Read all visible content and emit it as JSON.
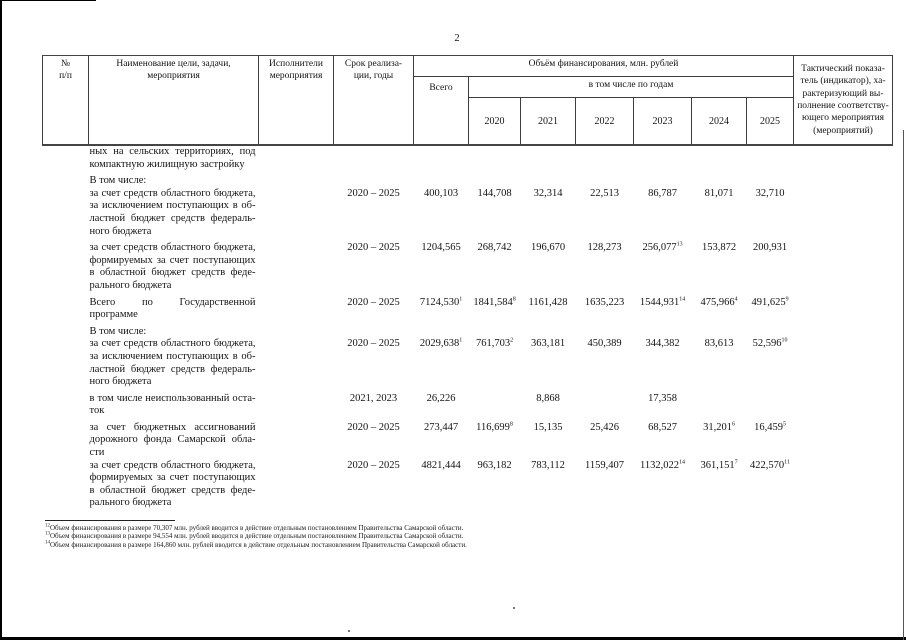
{
  "page": {
    "number": "2"
  },
  "table": {
    "header": {
      "col_num": "№\nп/п",
      "col_name": "Наименование цели, задачи,\nмероприятия",
      "col_executors": "Исполнители\nмероприятия",
      "col_period": "Срок реализа-\nции, годы",
      "financing": "Объём финансирования, млн. рублей",
      "total": "Всего",
      "by_years": "в том числе по годам",
      "years": [
        "2020",
        "2021",
        "2022",
        "2023",
        "2024",
        "2025"
      ],
      "indicator": "Тактический показа-\nтель (индикатор), ха-\nрактеризующий вы-\nполнение соответству-\nющего мероприятия\n(мероприятий)"
    },
    "rows": [
      {
        "name": "ных на сельских территориях, под компактную жилищную застройку",
        "period": "",
        "tight": true,
        "values": [
          null,
          null,
          null,
          null,
          null,
          null,
          null
        ]
      },
      {
        "name": "В том числе:",
        "period": "",
        "tight": false,
        "values": [
          null,
          null,
          null,
          null,
          null,
          null,
          null
        ]
      },
      {
        "name": "за счет средств областного бюджета, за исключением поступающих в об­ластной бюджет средств федераль­ного бюджета",
        "period": "2020 – 2025",
        "tight": true,
        "values": [
          {
            "v": "400,103"
          },
          {
            "v": "144,708"
          },
          {
            "v": "32,314"
          },
          {
            "v": "22,513"
          },
          {
            "v": "86,787"
          },
          {
            "v": "81,071"
          },
          {
            "v": "32,710"
          }
        ]
      },
      {
        "name": "за счет средств областного бюджета, формируемых за счет поступающих в областной бюджет средств феде­рального бюджета",
        "period": "2020 – 2025",
        "tight": false,
        "values": [
          {
            "v": "1204,565"
          },
          {
            "v": "268,742"
          },
          {
            "v": "196,670"
          },
          {
            "v": "128,273"
          },
          {
            "v": "256,077",
            "s": "13"
          },
          {
            "v": "153,872"
          },
          {
            "v": "200,931"
          }
        ]
      },
      {
        "name": "Всего по Государственной программе",
        "period": "2020 – 2025",
        "tight": false,
        "values": [
          {
            "v": "7124,530",
            "s": "1"
          },
          {
            "v": "1841,584",
            "s": "8"
          },
          {
            "v": "1161,428"
          },
          {
            "v": "1635,223"
          },
          {
            "v": "1544,931",
            "s": "14"
          },
          {
            "v": "475,966",
            "s": "4"
          },
          {
            "v": "491,625",
            "s": "9"
          }
        ]
      },
      {
        "name": "В том числе:",
        "period": "",
        "tight": false,
        "values": [
          null,
          null,
          null,
          null,
          null,
          null,
          null
        ]
      },
      {
        "name": "за счет средств областного бюджета, за исключением поступающих в об­ластной бюджет средств федераль­ного бюджета",
        "period": "2020 – 2025",
        "tight": true,
        "values": [
          {
            "v": "2029,638",
            "s": "1"
          },
          {
            "v": "761,703",
            "s": "2"
          },
          {
            "v": "363,181"
          },
          {
            "v": "450,389"
          },
          {
            "v": "344,382"
          },
          {
            "v": "83,613"
          },
          {
            "v": "52,596",
            "s": "10"
          }
        ]
      },
      {
        "name": "в том числе неиспользованный оста­ток",
        "period": "2021, 2023",
        "tight": false,
        "values": [
          {
            "v": "26,226"
          },
          null,
          {
            "v": "8,868"
          },
          null,
          {
            "v": "17,358"
          },
          null,
          null
        ]
      },
      {
        "name": "за счет бюджетных ассигнований дорожного фонда Самарской обла­сти",
        "period": "2020 – 2025",
        "tight": false,
        "values": [
          {
            "v": "273,447"
          },
          {
            "v": "116,699",
            "s": "8"
          },
          {
            "v": "15,135"
          },
          {
            "v": "25,426"
          },
          {
            "v": "68,527"
          },
          {
            "v": "31,201",
            "s": "6"
          },
          {
            "v": "16,459",
            "s": "5"
          }
        ]
      },
      {
        "name": "за счет средств областного бюджета, формируемых за счет поступающих в областной бюджет средств феде­рального бюджета",
        "period": "2020 – 2025",
        "tight": true,
        "values": [
          {
            "v": "4821,444"
          },
          {
            "v": "963,182"
          },
          {
            "v": "783,112"
          },
          {
            "v": "1159,407"
          },
          {
            "v": "1132,022",
            "s": "14"
          },
          {
            "v": "361,151",
            "s": "7"
          },
          {
            "v": "422,570",
            "s": "11"
          }
        ]
      }
    ]
  },
  "footnotes": [
    {
      "mark": "12",
      "text": "Объем финансирования в размере 70,307 млн. рублей вводится в действие отдельным постановлением Правительства Самарской области."
    },
    {
      "mark": "13",
      "text": "Объем финансирования в размере 94,554 млн. рублей вводится в действие отдельным постановлением Правительства Самарской области."
    },
    {
      "mark": "14",
      "text": "Объем финансирования в размере 164,860 млн. рублей вводится в действие отдельным постановлением Правительства Самарской области."
    }
  ]
}
